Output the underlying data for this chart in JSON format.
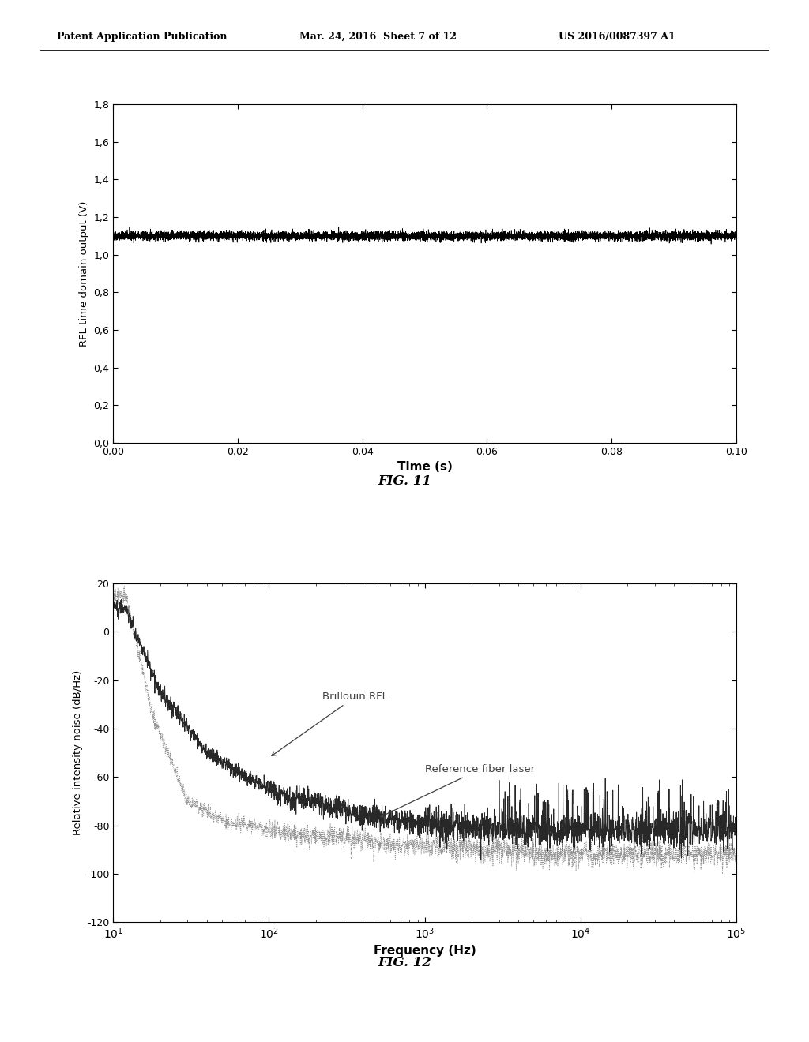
{
  "header_left": "Patent Application Publication",
  "header_mid": "Mar. 24, 2016  Sheet 7 of 12",
  "header_right": "US 2016/0087397 A1",
  "fig1": {
    "title": "FIG. 11",
    "ylabel": "RFL time domain output (V)",
    "xlabel": "Time (s)",
    "xlim": [
      0.0,
      0.1
    ],
    "ylim": [
      0.0,
      1.8
    ],
    "yticks": [
      0.0,
      0.2,
      0.4,
      0.6,
      0.8,
      1.0,
      1.2,
      1.4,
      1.6,
      1.8
    ],
    "xticks": [
      0.0,
      0.02,
      0.04,
      0.06,
      0.08,
      0.1
    ],
    "signal_mean": 1.1,
    "signal_noise": 0.012,
    "line_color": "#000000"
  },
  "fig2": {
    "title": "FIG. 12",
    "ylabel": "Relative intensity noise (dB/Hz)",
    "xlabel": "Frequency (Hz)",
    "xlim_log": [
      1,
      5
    ],
    "ylim": [
      -120,
      20
    ],
    "yticks": [
      -120,
      -100,
      -80,
      -60,
      -40,
      -20,
      0,
      20
    ],
    "label_brillouin": "Brillouin RFL",
    "label_reference": "Reference fiber laser",
    "line_color_brillouin": "#282828",
    "line_color_reference": "#888888"
  },
  "background_color": "#ffffff",
  "text_color": "#000000"
}
